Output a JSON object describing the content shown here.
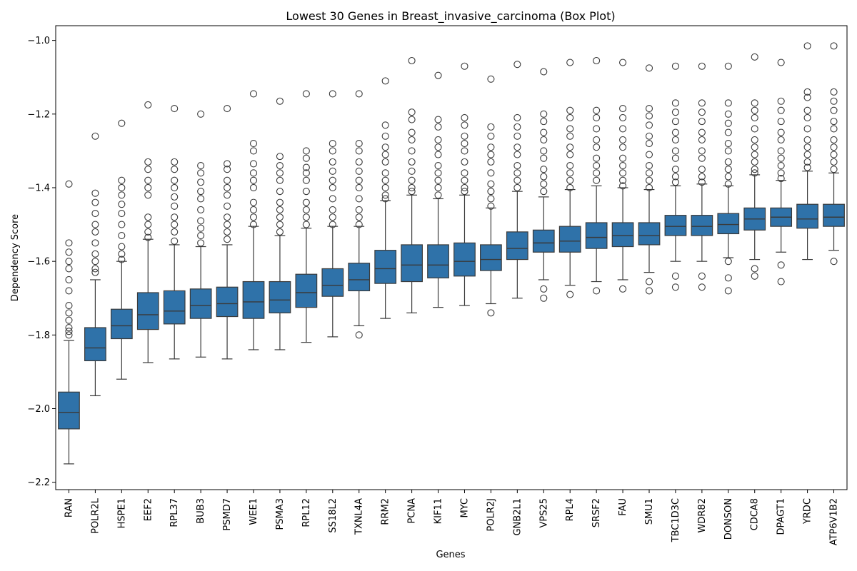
{
  "chart_data": {
    "type": "box",
    "title": "Lowest 30 Genes in Breast_invasive_carcinoma (Box Plot)",
    "xlabel": "Genes",
    "ylabel": "Dependency Score",
    "ylim": [
      -2.22,
      -0.96
    ],
    "yticks": [
      -2.2,
      -2.0,
      -1.8,
      -1.6,
      -1.4,
      -1.2,
      -1.0
    ],
    "ytick_labels": [
      "−2.2",
      "−2.0",
      "−1.8",
      "−1.6",
      "−1.4",
      "−1.2",
      "−1.0"
    ],
    "box_color": "#2f72a9",
    "line_color": "#3a3a3a",
    "grid": false,
    "series": [
      {
        "gene": "RAN",
        "whislo": -2.15,
        "q1": -2.055,
        "med": -2.01,
        "q3": -1.955,
        "whishi": -1.815,
        "outliers": [
          -1.39,
          -1.55,
          -1.575,
          -1.6,
          -1.62,
          -1.65,
          -1.68,
          -1.72,
          -1.74,
          -1.76,
          -1.78,
          -1.79,
          -1.8
        ]
      },
      {
        "gene": "POLR2L",
        "whislo": -1.965,
        "q1": -1.87,
        "med": -1.835,
        "q3": -1.78,
        "whishi": -1.65,
        "outliers": [
          -1.26,
          -1.415,
          -1.44,
          -1.47,
          -1.5,
          -1.52,
          -1.55,
          -1.58,
          -1.6,
          -1.62,
          -1.63
        ]
      },
      {
        "gene": "HSPE1",
        "whislo": -1.92,
        "q1": -1.81,
        "med": -1.775,
        "q3": -1.73,
        "whishi": -1.6,
        "outliers": [
          -1.225,
          -1.38,
          -1.4,
          -1.42,
          -1.445,
          -1.47,
          -1.5,
          -1.53,
          -1.56,
          -1.58,
          -1.595
        ]
      },
      {
        "gene": "EEF2",
        "whislo": -1.875,
        "q1": -1.785,
        "med": -1.745,
        "q3": -1.685,
        "whishi": -1.54,
        "outliers": [
          -1.175,
          -1.33,
          -1.35,
          -1.38,
          -1.4,
          -1.42,
          -1.48,
          -1.5,
          -1.52,
          -1.535
        ]
      },
      {
        "gene": "RPL37",
        "whislo": -1.865,
        "q1": -1.77,
        "med": -1.735,
        "q3": -1.68,
        "whishi": -1.555,
        "outliers": [
          -1.185,
          -1.33,
          -1.35,
          -1.38,
          -1.4,
          -1.425,
          -1.45,
          -1.48,
          -1.5,
          -1.52,
          -1.545
        ]
      },
      {
        "gene": "BUB3",
        "whislo": -1.86,
        "q1": -1.755,
        "med": -1.72,
        "q3": -1.675,
        "whishi": -1.56,
        "outliers": [
          -1.2,
          -1.34,
          -1.36,
          -1.385,
          -1.41,
          -1.43,
          -1.46,
          -1.49,
          -1.51,
          -1.53,
          -1.55
        ]
      },
      {
        "gene": "PSMD7",
        "whislo": -1.865,
        "q1": -1.75,
        "med": -1.715,
        "q3": -1.67,
        "whishi": -1.555,
        "outliers": [
          -1.185,
          -1.335,
          -1.35,
          -1.38,
          -1.4,
          -1.42,
          -1.45,
          -1.48,
          -1.5,
          -1.52,
          -1.54
        ]
      },
      {
        "gene": "WEE1",
        "whislo": -1.84,
        "q1": -1.755,
        "med": -1.71,
        "q3": -1.655,
        "whishi": -1.505,
        "outliers": [
          -1.145,
          -1.28,
          -1.3,
          -1.335,
          -1.36,
          -1.38,
          -1.4,
          -1.44,
          -1.46,
          -1.48,
          -1.5
        ]
      },
      {
        "gene": "PSMA3",
        "whislo": -1.84,
        "q1": -1.74,
        "med": -1.705,
        "q3": -1.655,
        "whishi": -1.53,
        "outliers": [
          -1.165,
          -1.315,
          -1.34,
          -1.36,
          -1.38,
          -1.41,
          -1.44,
          -1.46,
          -1.48,
          -1.5,
          -1.52
        ]
      },
      {
        "gene": "RPL12",
        "whislo": -1.82,
        "q1": -1.725,
        "med": -1.685,
        "q3": -1.635,
        "whishi": -1.51,
        "outliers": [
          -1.145,
          -1.3,
          -1.32,
          -1.345,
          -1.36,
          -1.38,
          -1.41,
          -1.44,
          -1.46,
          -1.48,
          -1.5
        ]
      },
      {
        "gene": "SS18L2",
        "whislo": -1.805,
        "q1": -1.695,
        "med": -1.665,
        "q3": -1.62,
        "whishi": -1.505,
        "outliers": [
          -1.145,
          -1.28,
          -1.3,
          -1.33,
          -1.355,
          -1.38,
          -1.4,
          -1.43,
          -1.46,
          -1.48,
          -1.5
        ]
      },
      {
        "gene": "TXNL4A",
        "whislo": -1.775,
        "q1": -1.68,
        "med": -1.65,
        "q3": -1.605,
        "whishi": -1.505,
        "outliers": [
          -1.145,
          -1.8,
          -1.28,
          -1.3,
          -1.33,
          -1.355,
          -1.38,
          -1.4,
          -1.43,
          -1.46,
          -1.48,
          -1.5
        ]
      },
      {
        "gene": "RRM2",
        "whislo": -1.755,
        "q1": -1.66,
        "med": -1.62,
        "q3": -1.57,
        "whishi": -1.435,
        "outliers": [
          -1.11,
          -1.23,
          -1.26,
          -1.29,
          -1.31,
          -1.33,
          -1.36,
          -1.38,
          -1.4,
          -1.42,
          -1.43
        ]
      },
      {
        "gene": "PCNA",
        "whislo": -1.74,
        "q1": -1.655,
        "med": -1.61,
        "q3": -1.555,
        "whishi": -1.42,
        "outliers": [
          -1.055,
          -1.195,
          -1.215,
          -1.25,
          -1.27,
          -1.3,
          -1.33,
          -1.355,
          -1.38,
          -1.4,
          -1.41
        ]
      },
      {
        "gene": "KIF11",
        "whislo": -1.725,
        "q1": -1.645,
        "med": -1.61,
        "q3": -1.555,
        "whishi": -1.43,
        "outliers": [
          -1.095,
          -1.215,
          -1.235,
          -1.27,
          -1.29,
          -1.31,
          -1.34,
          -1.36,
          -1.38,
          -1.4,
          -1.42
        ]
      },
      {
        "gene": "MYC",
        "whislo": -1.72,
        "q1": -1.64,
        "med": -1.6,
        "q3": -1.55,
        "whishi": -1.42,
        "outliers": [
          -1.07,
          -1.21,
          -1.23,
          -1.26,
          -1.28,
          -1.3,
          -1.33,
          -1.36,
          -1.38,
          -1.4,
          -1.41
        ]
      },
      {
        "gene": "POLR2J",
        "whislo": -1.715,
        "q1": -1.625,
        "med": -1.595,
        "q3": -1.555,
        "whishi": -1.455,
        "outliers": [
          -1.105,
          -1.235,
          -1.26,
          -1.29,
          -1.31,
          -1.33,
          -1.36,
          -1.39,
          -1.41,
          -1.43,
          -1.45,
          -1.74
        ]
      },
      {
        "gene": "GNB2L1",
        "whislo": -1.7,
        "q1": -1.595,
        "med": -1.565,
        "q3": -1.52,
        "whishi": -1.41,
        "outliers": [
          -1.065,
          -1.21,
          -1.235,
          -1.26,
          -1.29,
          -1.31,
          -1.34,
          -1.36,
          -1.38,
          -1.4
        ]
      },
      {
        "gene": "VPS25",
        "whislo": -1.65,
        "q1": -1.575,
        "med": -1.55,
        "q3": -1.515,
        "whishi": -1.425,
        "outliers": [
          -1.085,
          -1.2,
          -1.22,
          -1.25,
          -1.27,
          -1.3,
          -1.32,
          -1.35,
          -1.37,
          -1.39,
          -1.41,
          -1.675,
          -1.7
        ]
      },
      {
        "gene": "RPL4",
        "whislo": -1.665,
        "q1": -1.575,
        "med": -1.545,
        "q3": -1.505,
        "whishi": -1.405,
        "outliers": [
          -1.06,
          -1.19,
          -1.21,
          -1.24,
          -1.26,
          -1.29,
          -1.31,
          -1.34,
          -1.36,
          -1.38,
          -1.4,
          -1.69
        ]
      },
      {
        "gene": "SRSF2",
        "whislo": -1.655,
        "q1": -1.565,
        "med": -1.535,
        "q3": -1.495,
        "whishi": -1.395,
        "outliers": [
          -1.055,
          -1.19,
          -1.21,
          -1.24,
          -1.27,
          -1.29,
          -1.32,
          -1.34,
          -1.36,
          -1.38,
          -1.68
        ]
      },
      {
        "gene": "FAU",
        "whislo": -1.65,
        "q1": -1.56,
        "med": -1.53,
        "q3": -1.495,
        "whishi": -1.4,
        "outliers": [
          -1.06,
          -1.185,
          -1.21,
          -1.24,
          -1.27,
          -1.29,
          -1.32,
          -1.34,
          -1.36,
          -1.38,
          -1.395,
          -1.675
        ]
      },
      {
        "gene": "SMU1",
        "whislo": -1.63,
        "q1": -1.555,
        "med": -1.53,
        "q3": -1.495,
        "whishi": -1.405,
        "outliers": [
          -1.075,
          -1.185,
          -1.205,
          -1.23,
          -1.26,
          -1.28,
          -1.31,
          -1.34,
          -1.36,
          -1.38,
          -1.4,
          -1.655,
          -1.68
        ]
      },
      {
        "gene": "TBC1D3C",
        "whislo": -1.6,
        "q1": -1.53,
        "med": -1.505,
        "q3": -1.475,
        "whishi": -1.395,
        "outliers": [
          -1.07,
          -1.17,
          -1.195,
          -1.22,
          -1.25,
          -1.27,
          -1.3,
          -1.32,
          -1.35,
          -1.37,
          -1.385,
          -1.64,
          -1.67
        ]
      },
      {
        "gene": "WDR82",
        "whislo": -1.6,
        "q1": -1.53,
        "med": -1.505,
        "q3": -1.475,
        "whishi": -1.39,
        "outliers": [
          -1.07,
          -1.17,
          -1.195,
          -1.22,
          -1.25,
          -1.27,
          -1.3,
          -1.32,
          -1.35,
          -1.37,
          -1.385,
          -1.64,
          -1.67
        ]
      },
      {
        "gene": "DONSON",
        "whislo": -1.59,
        "q1": -1.525,
        "med": -1.5,
        "q3": -1.47,
        "whishi": -1.395,
        "outliers": [
          -1.07,
          -1.17,
          -1.2,
          -1.225,
          -1.25,
          -1.28,
          -1.3,
          -1.33,
          -1.35,
          -1.37,
          -1.39,
          -1.6,
          -1.645,
          -1.68
        ]
      },
      {
        "gene": "CDCA8",
        "whislo": -1.595,
        "q1": -1.515,
        "med": -1.485,
        "q3": -1.455,
        "whishi": -1.365,
        "outliers": [
          -1.045,
          -1.17,
          -1.19,
          -1.21,
          -1.24,
          -1.27,
          -1.29,
          -1.31,
          -1.33,
          -1.35,
          -1.36,
          -1.62,
          -1.64
        ]
      },
      {
        "gene": "DPAGT1",
        "whislo": -1.575,
        "q1": -1.505,
        "med": -1.48,
        "q3": -1.455,
        "whishi": -1.38,
        "outliers": [
          -1.06,
          -1.165,
          -1.19,
          -1.22,
          -1.25,
          -1.27,
          -1.3,
          -1.32,
          -1.34,
          -1.36,
          -1.375,
          -1.61,
          -1.655
        ]
      },
      {
        "gene": "YRDC",
        "whislo": -1.595,
        "q1": -1.51,
        "med": -1.485,
        "q3": -1.445,
        "whishi": -1.355,
        "outliers": [
          -1.015,
          -1.14,
          -1.155,
          -1.19,
          -1.21,
          -1.24,
          -1.27,
          -1.29,
          -1.31,
          -1.33,
          -1.345
        ]
      },
      {
        "gene": "ATP6V1B2",
        "whislo": -1.57,
        "q1": -1.505,
        "med": -1.48,
        "q3": -1.445,
        "whishi": -1.36,
        "outliers": [
          -1.015,
          -1.14,
          -1.165,
          -1.19,
          -1.22,
          -1.24,
          -1.27,
          -1.29,
          -1.31,
          -1.33,
          -1.35,
          -1.6
        ]
      }
    ]
  }
}
